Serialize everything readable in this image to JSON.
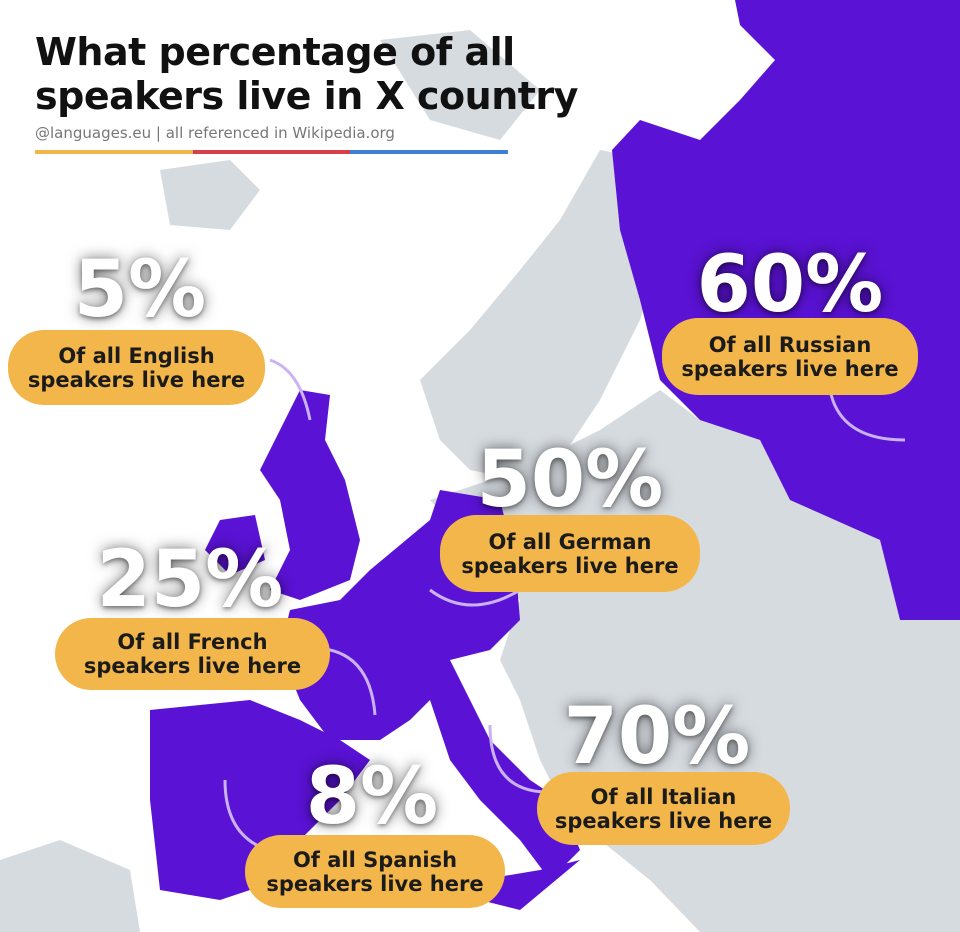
{
  "header": {
    "title_lines": [
      "What percentage of all",
      "speakers live in X country"
    ],
    "subtitle": "@languages.eu | all referenced in Wikipedia.org"
  },
  "callouts": [
    {
      "percent": "5%",
      "lines": [
        "Of all English",
        "speakers live here"
      ]
    },
    {
      "percent": "60%",
      "lines": [
        "Of all Russian",
        "speakers live here"
      ]
    },
    {
      "percent": "50%",
      "lines": [
        "Of all German",
        "speakers live here"
      ]
    },
    {
      "percent": "25%",
      "lines": [
        "Of all French",
        "speakers live here"
      ]
    },
    {
      "percent": "70%",
      "lines": [
        "Of all Italian",
        "speakers live here"
      ]
    },
    {
      "percent": "8%",
      "lines": [
        "Of all Spanish",
        "speakers live here"
      ]
    }
  ]
}
